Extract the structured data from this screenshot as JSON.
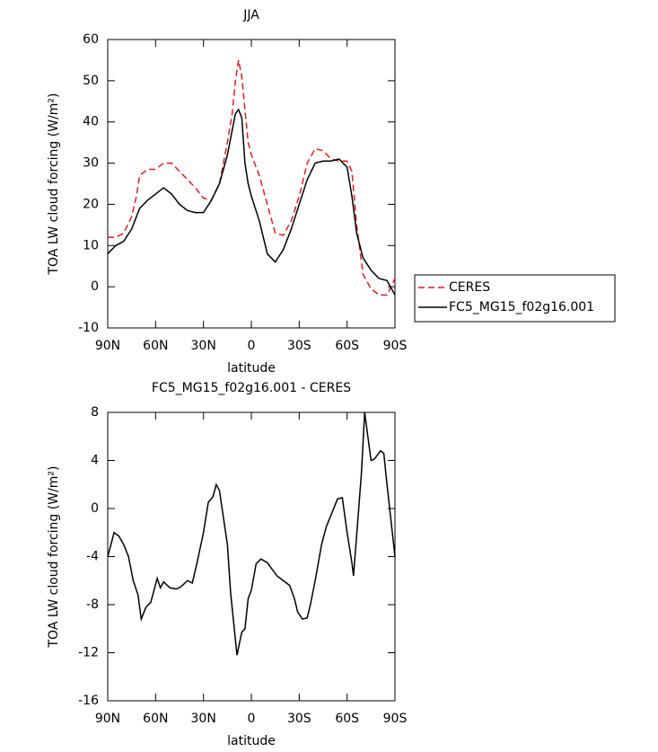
{
  "chart_data": [
    {
      "type": "line",
      "title": "JJA",
      "xlabel": "latitude",
      "ylabel": "TOA LW cloud forcing (W/m²)",
      "x": [
        90,
        85,
        80,
        75,
        72,
        70,
        65,
        60,
        55,
        50,
        45,
        40,
        35,
        30,
        25,
        20,
        15,
        12,
        10,
        8,
        6,
        4,
        2,
        0,
        -5,
        -10,
        -15,
        -20,
        -25,
        -30,
        -35,
        -40,
        -45,
        -50,
        -55,
        -60,
        -63,
        -66,
        -70,
        -75,
        -80,
        -85,
        -90
      ],
      "series": [
        {
          "name": "CERES",
          "color": "#e41a1c",
          "linestyle": "dashed",
          "values": [
            12,
            12,
            13,
            17,
            22,
            27,
            28.5,
            28.5,
            30,
            30,
            28,
            26,
            24,
            21.5,
            21,
            25,
            35,
            42,
            50,
            55,
            51,
            43,
            35,
            32,
            27,
            20,
            13,
            12.5,
            16,
            22,
            30,
            33.5,
            33,
            31,
            30.5,
            30.5,
            28,
            15,
            3,
            -0.5,
            -2,
            -2,
            2
          ]
        },
        {
          "name": "FC5_MG15_f02g16.001",
          "color": "#000000",
          "linestyle": "solid",
          "values": [
            8,
            10,
            11,
            14,
            17,
            19,
            21,
            22.5,
            24,
            22.5,
            20,
            18.5,
            18,
            18,
            21,
            25,
            32,
            38,
            42,
            43,
            41,
            30,
            25,
            22,
            16,
            8,
            6,
            9,
            14,
            20,
            26,
            30,
            30.5,
            30.5,
            31,
            29,
            22,
            13,
            7,
            4,
            2,
            1.5,
            -2
          ]
        }
      ],
      "xlim": [
        90,
        -90
      ],
      "xticks": [
        {
          "value": 90,
          "label": "90N"
        },
        {
          "value": 60,
          "label": "60N"
        },
        {
          "value": 30,
          "label": "30N"
        },
        0,
        {
          "value": -30,
          "label": "30S"
        },
        {
          "value": -60,
          "label": "60S"
        },
        {
          "value": -90,
          "label": "90S"
        }
      ],
      "ylim": [
        -10,
        60
      ],
      "yticks": [
        -10,
        0,
        10,
        20,
        30,
        40,
        50,
        60
      ],
      "legend": "right"
    },
    {
      "type": "line",
      "title": "FC5_MG15_f02g16.001 - CERES",
      "xlabel": "latitude",
      "ylabel": "TOA LW cloud forcing (W/m²)",
      "x": [
        90,
        86,
        83,
        80,
        77,
        74,
        71,
        69,
        66,
        63,
        59,
        57,
        55,
        51,
        47,
        44,
        40,
        37,
        34,
        30,
        27,
        24,
        22,
        20,
        15,
        13,
        9,
        6,
        4,
        2,
        0,
        -3,
        -6,
        -10,
        -16,
        -20,
        -24,
        -27,
        -29,
        -32,
        -35,
        -37,
        -40,
        -44,
        -47,
        -51,
        -54,
        -57,
        -60,
        -63,
        -64,
        -67,
        -69,
        -71,
        -75,
        -77,
        -81,
        -83,
        -85,
        -90
      ],
      "series": [
        {
          "color": "#000000",
          "linestyle": "solid",
          "values": [
            -4,
            -2,
            -2.3,
            -3,
            -4,
            -6,
            -7.2,
            -9.2,
            -8.2,
            -7.8,
            -5.8,
            -6.6,
            -6.1,
            -6.6,
            -6.7,
            -6.5,
            -6,
            -6.2,
            -4.5,
            -2,
            0.5,
            1,
            2,
            1.5,
            -3,
            -7,
            -12.2,
            -10.3,
            -10,
            -7.5,
            -6.8,
            -4.6,
            -4.2,
            -4.5,
            -5.6,
            -6,
            -6.4,
            -7.5,
            -8.6,
            -9.2,
            -9.1,
            -8,
            -6,
            -3,
            -1.5,
            -0.2,
            0.8,
            0.9,
            -2,
            -4.5,
            -5.6,
            -0.5,
            3,
            8,
            4,
            4.1,
            4.8,
            4.6,
            2,
            -4
          ]
        }
      ],
      "xlim": [
        90,
        -90
      ],
      "xticks": [
        {
          "value": 90,
          "label": "90N"
        },
        {
          "value": 60,
          "label": "60N"
        },
        {
          "value": 30,
          "label": "30N"
        },
        0,
        {
          "value": -30,
          "label": "30S"
        },
        {
          "value": -60,
          "label": "60S"
        },
        {
          "value": -90,
          "label": "90S"
        }
      ],
      "ylim": [
        -16,
        8
      ],
      "yticks": [
        -16,
        -12,
        -8,
        -4,
        0,
        4,
        8
      ]
    }
  ]
}
